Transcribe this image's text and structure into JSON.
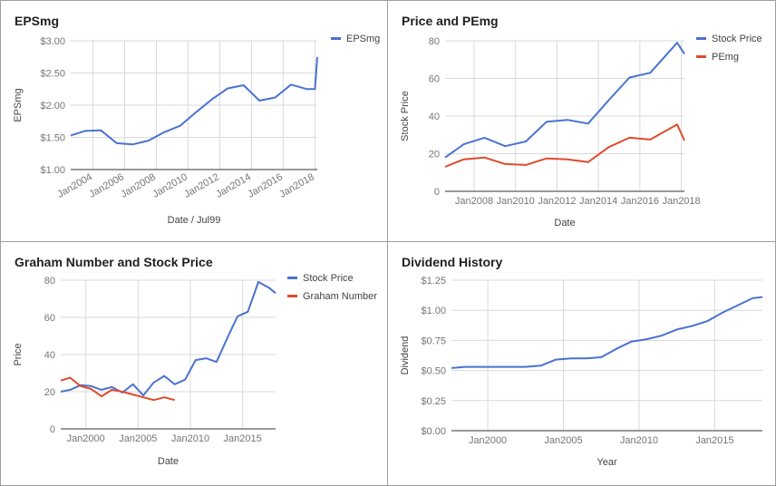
{
  "colors": {
    "blue": "#4a72d1",
    "red": "#df4a2b"
  },
  "chart_data": [
    {
      "id": "eps",
      "type": "line",
      "title": "EPSmg",
      "xlabel": "Date / Jul99",
      "ylabel": "EPSmg",
      "x_ticks": [
        "Jan2004",
        "Jan2006",
        "Jan2008",
        "Jan2010",
        "Jan2012",
        "Jan2014",
        "Jan2016",
        "Jan2018"
      ],
      "y_ticks": [
        "$1.00",
        "$1.50",
        "$2.00",
        "$2.50",
        "$3.00"
      ],
      "ylim": [
        1.0,
        3.0
      ],
      "xlim": [
        2002.6,
        2018.15
      ],
      "series": [
        {
          "name": "EPSmg",
          "color": "#4a72d1",
          "x": [
            2002.6,
            2003.5,
            2004.5,
            2005.5,
            2006.5,
            2007.5,
            2008.5,
            2009.5,
            2010.5,
            2011.5,
            2012.5,
            2013.5,
            2014.5,
            2015.5,
            2016.5,
            2017.5,
            2018.0,
            2018.15
          ],
          "y": [
            1.53,
            1.6,
            1.61,
            1.41,
            1.39,
            1.45,
            1.58,
            1.68,
            1.89,
            2.09,
            2.26,
            2.31,
            2.07,
            2.12,
            2.32,
            2.25,
            2.25,
            2.75
          ]
        }
      ],
      "legend": "top-right"
    },
    {
      "id": "price-pe",
      "type": "line",
      "title": "Price and PEmg",
      "xlabel": "Date",
      "ylabel": "Stock Price",
      "x_ticks": [
        "Jan2008",
        "Jan2010",
        "Jan2012",
        "Jan2014",
        "Jan2016",
        "Jan2018"
      ],
      "y_ticks": [
        "0",
        "20",
        "40",
        "60",
        "80"
      ],
      "ylim": [
        0,
        80
      ],
      "xlim": [
        2006.6,
        2018.15
      ],
      "series": [
        {
          "name": "Stock Price",
          "color": "#4a72d1",
          "x": [
            2006.6,
            2007.5,
            2008.5,
            2009.5,
            2010.5,
            2011.5,
            2012.5,
            2013.5,
            2014.5,
            2015.5,
            2016.5,
            2017.8,
            2018.15
          ],
          "y": [
            18,
            25,
            28.5,
            24,
            26.5,
            37,
            38,
            36,
            48.5,
            60.5,
            63,
            79,
            73
          ]
        },
        {
          "name": "PEmg",
          "color": "#df4a2b",
          "x": [
            2006.6,
            2007.5,
            2008.5,
            2009.5,
            2010.5,
            2011.5,
            2012.5,
            2013.5,
            2014.5,
            2015.5,
            2016.5,
            2017.8,
            2018.15
          ],
          "y": [
            13,
            17,
            18,
            14.5,
            14,
            17.5,
            17,
            15.5,
            23.5,
            28.5,
            27.5,
            35.5,
            27
          ]
        }
      ],
      "legend": "top-right"
    },
    {
      "id": "graham",
      "type": "line",
      "title": "Graham Number and Stock Price",
      "xlabel": "Date",
      "ylabel": "Price",
      "x_ticks": [
        "Jan2000",
        "Jan2005",
        "Jan2010",
        "Jan2015"
      ],
      "y_ticks": [
        "0",
        "20",
        "40",
        "60",
        "80"
      ],
      "ylim": [
        0,
        80
      ],
      "xlim": [
        1997.6,
        2018.15
      ],
      "series": [
        {
          "name": "Stock Price",
          "color": "#4a72d1",
          "x": [
            1997.6,
            1998.5,
            1999.5,
            2000.5,
            2001.5,
            2002.5,
            2003.5,
            2004.5,
            2005.5,
            2006.5,
            2007.5,
            2008.5,
            2009.5,
            2010.5,
            2011.5,
            2012.5,
            2013.5,
            2014.5,
            2015.5,
            2016.5,
            2017.5,
            2018.15
          ],
          "y": [
            20,
            21,
            23.5,
            23,
            21,
            22.5,
            19.5,
            24,
            18,
            25,
            28.5,
            24,
            26.5,
            37,
            38,
            36,
            48.5,
            60.5,
            63,
            79,
            76,
            73
          ]
        },
        {
          "name": "Graham Number",
          "color": "#df4a2b",
          "x": [
            1997.6,
            1998.5,
            1999.5,
            2000.5,
            2001.5,
            2002.5,
            2003.5,
            2004.5,
            2005.5,
            2006.5,
            2007.5,
            2008.5
          ],
          "y": [
            26,
            27.5,
            23,
            21.5,
            17.5,
            21,
            20,
            18.5,
            17,
            15.5,
            17,
            15.5
          ]
        }
      ],
      "legend": "top-right"
    },
    {
      "id": "dividend",
      "type": "line",
      "title": "Dividend History",
      "xlabel": "Year",
      "ylabel": "Dividend",
      "x_ticks": [
        "Jan2000",
        "Jan2005",
        "Jan2010",
        "Jan2015"
      ],
      "y_ticks": [
        "$0.00",
        "$0.25",
        "$0.50",
        "$0.75",
        "$1.00",
        "$1.25"
      ],
      "ylim": [
        0,
        1.25
      ],
      "xlim": [
        1997.6,
        2018.15
      ],
      "series": [
        {
          "name": "Dividend",
          "color": "#4a72d1",
          "x": [
            1997.6,
            1998.5,
            1999.5,
            2000.5,
            2001.5,
            2002.5,
            2003.5,
            2004.5,
            2005.5,
            2006.5,
            2007.5,
            2008.5,
            2009.5,
            2010.5,
            2011.5,
            2012.5,
            2013.5,
            2014.5,
            2015.5,
            2016.5,
            2017.5,
            2018.15
          ],
          "y": [
            0.52,
            0.53,
            0.53,
            0.53,
            0.53,
            0.53,
            0.54,
            0.59,
            0.6,
            0.6,
            0.61,
            0.68,
            0.74,
            0.76,
            0.79,
            0.84,
            0.87,
            0.91,
            0.98,
            1.04,
            1.1,
            1.11
          ]
        }
      ],
      "legend": "none"
    }
  ]
}
